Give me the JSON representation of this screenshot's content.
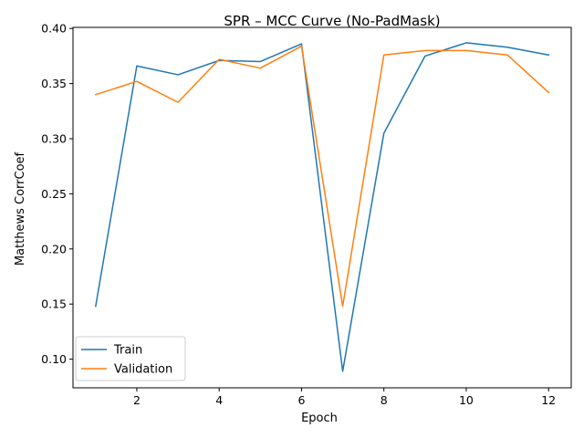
{
  "chart_data": {
    "type": "line",
    "title": "SPR – MCC Curve (No-PadMask)",
    "xlabel": "Epoch",
    "ylabel": "Matthews CorrCoef",
    "xlim": [
      0.45,
      12.55
    ],
    "ylim": [
      0.074,
      0.401
    ],
    "xticks": [
      2,
      4,
      6,
      8,
      10,
      12
    ],
    "yticks": [
      0.1,
      0.15,
      0.2,
      0.25,
      0.3,
      0.35,
      0.4
    ],
    "ytick_labels": [
      "0.10",
      "0.15",
      "0.20",
      "0.25",
      "0.30",
      "0.35",
      "0.40"
    ],
    "grid": false,
    "legend_position": "lower-left",
    "x": [
      1,
      2,
      3,
      4,
      5,
      6,
      7,
      8,
      9,
      10,
      11,
      12
    ],
    "series": [
      {
        "name": "Train",
        "color": "#1f77b4",
        "values": [
          0.148,
          0.366,
          0.358,
          0.371,
          0.37,
          0.386,
          0.089,
          0.305,
          0.375,
          0.387,
          0.383,
          0.376
        ]
      },
      {
        "name": "Validation",
        "color": "#ff7f0e",
        "values": [
          0.34,
          0.352,
          0.333,
          0.372,
          0.364,
          0.384,
          0.148,
          0.376,
          0.38,
          0.38,
          0.376,
          0.342
        ]
      }
    ]
  }
}
